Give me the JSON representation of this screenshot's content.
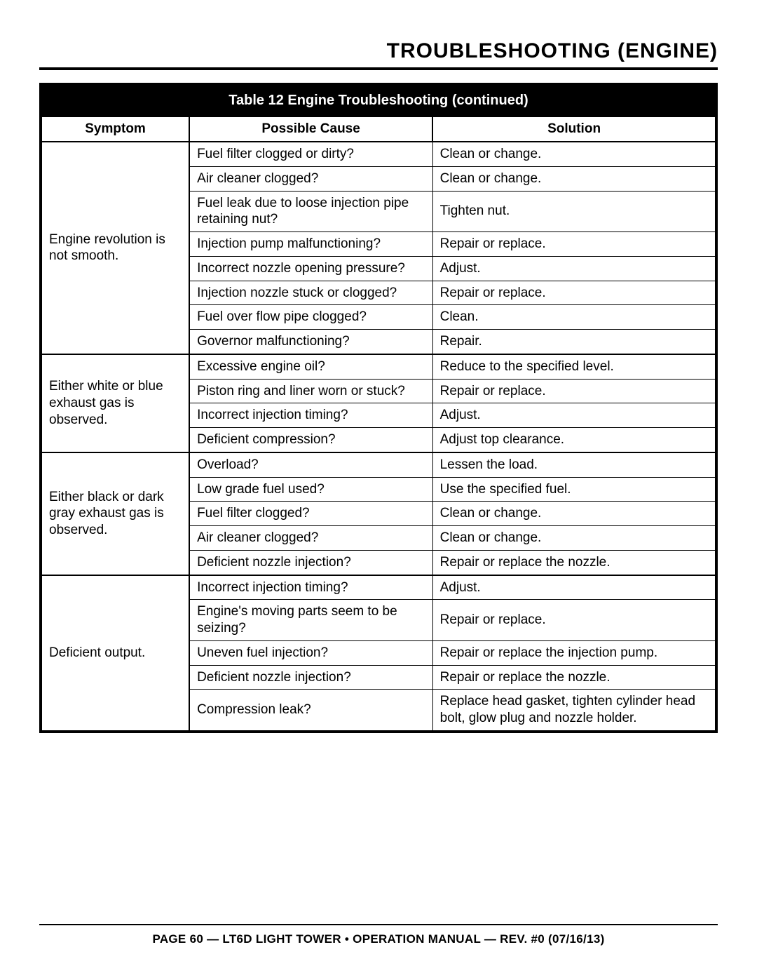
{
  "section_title": "TROUBLESHOOTING (ENGINE)",
  "table": {
    "caption": "Table 12  Engine Troubleshooting (continued)",
    "columns": [
      "Symptom",
      "Possible Cause",
      "Solution"
    ],
    "groups": [
      {
        "symptom": "Engine revolution is not smooth.",
        "rows": [
          {
            "cause": "Fuel filter clogged or dirty?",
            "solution": "Clean or change."
          },
          {
            "cause": "Air cleaner clogged?",
            "solution": "Clean or change."
          },
          {
            "cause": "Fuel leak due to loose injection pipe retaining nut?",
            "solution": "Tighten nut."
          },
          {
            "cause": "Injection pump malfunctioning?",
            "solution": "Repair or replace."
          },
          {
            "cause": "Incorrect nozzle opening pressure?",
            "solution": "Adjust."
          },
          {
            "cause": "Injection nozzle stuck or clogged?",
            "solution": "Repair or replace."
          },
          {
            "cause": "Fuel over flow pipe clogged?",
            "solution": "Clean."
          },
          {
            "cause": "Governor malfunctioning?",
            "solution": "Repair."
          }
        ]
      },
      {
        "symptom": "Either white or blue exhaust gas is observed.",
        "rows": [
          {
            "cause": "Excessive engine oil?",
            "solution": "Reduce to the specified level."
          },
          {
            "cause": "Piston ring and liner worn or stuck?",
            "solution": "Repair or replace."
          },
          {
            "cause": "Incorrect injection timing?",
            "solution": "Adjust."
          },
          {
            "cause": "Deficient compression?",
            "solution": "Adjust top clearance."
          }
        ]
      },
      {
        "symptom": "Either black or dark gray exhaust gas is observed.",
        "rows": [
          {
            "cause": "Overload?",
            "solution": "Lessen the load."
          },
          {
            "cause": "Low grade fuel used?",
            "solution": "Use the specified fuel."
          },
          {
            "cause": "Fuel filter clogged?",
            "solution": "Clean or change."
          },
          {
            "cause": "Air cleaner clogged?",
            "solution": "Clean or change."
          },
          {
            "cause": "Deficient nozzle injection?",
            "solution": "Repair or replace the nozzle."
          }
        ]
      },
      {
        "symptom": "Deficient output.",
        "rows": [
          {
            "cause": "Incorrect injection timing?",
            "solution": "Adjust."
          },
          {
            "cause": "Engine's moving parts seem to be seizing?",
            "solution": "Repair or replace."
          },
          {
            "cause": "Uneven fuel injection?",
            "solution": "Repair or replace the injection pump."
          },
          {
            "cause": "Deficient nozzle injection?",
            "solution": "Repair or replace the nozzle."
          },
          {
            "cause": "Compression leak?",
            "solution": "Replace head gasket, tighten cylinder head bolt, glow plug and nozzle holder."
          }
        ]
      }
    ]
  },
  "footer": "PAGE 60 — LT6D LIGHT TOWER • OPERATION MANUAL — REV. #0 (07/16/13)"
}
